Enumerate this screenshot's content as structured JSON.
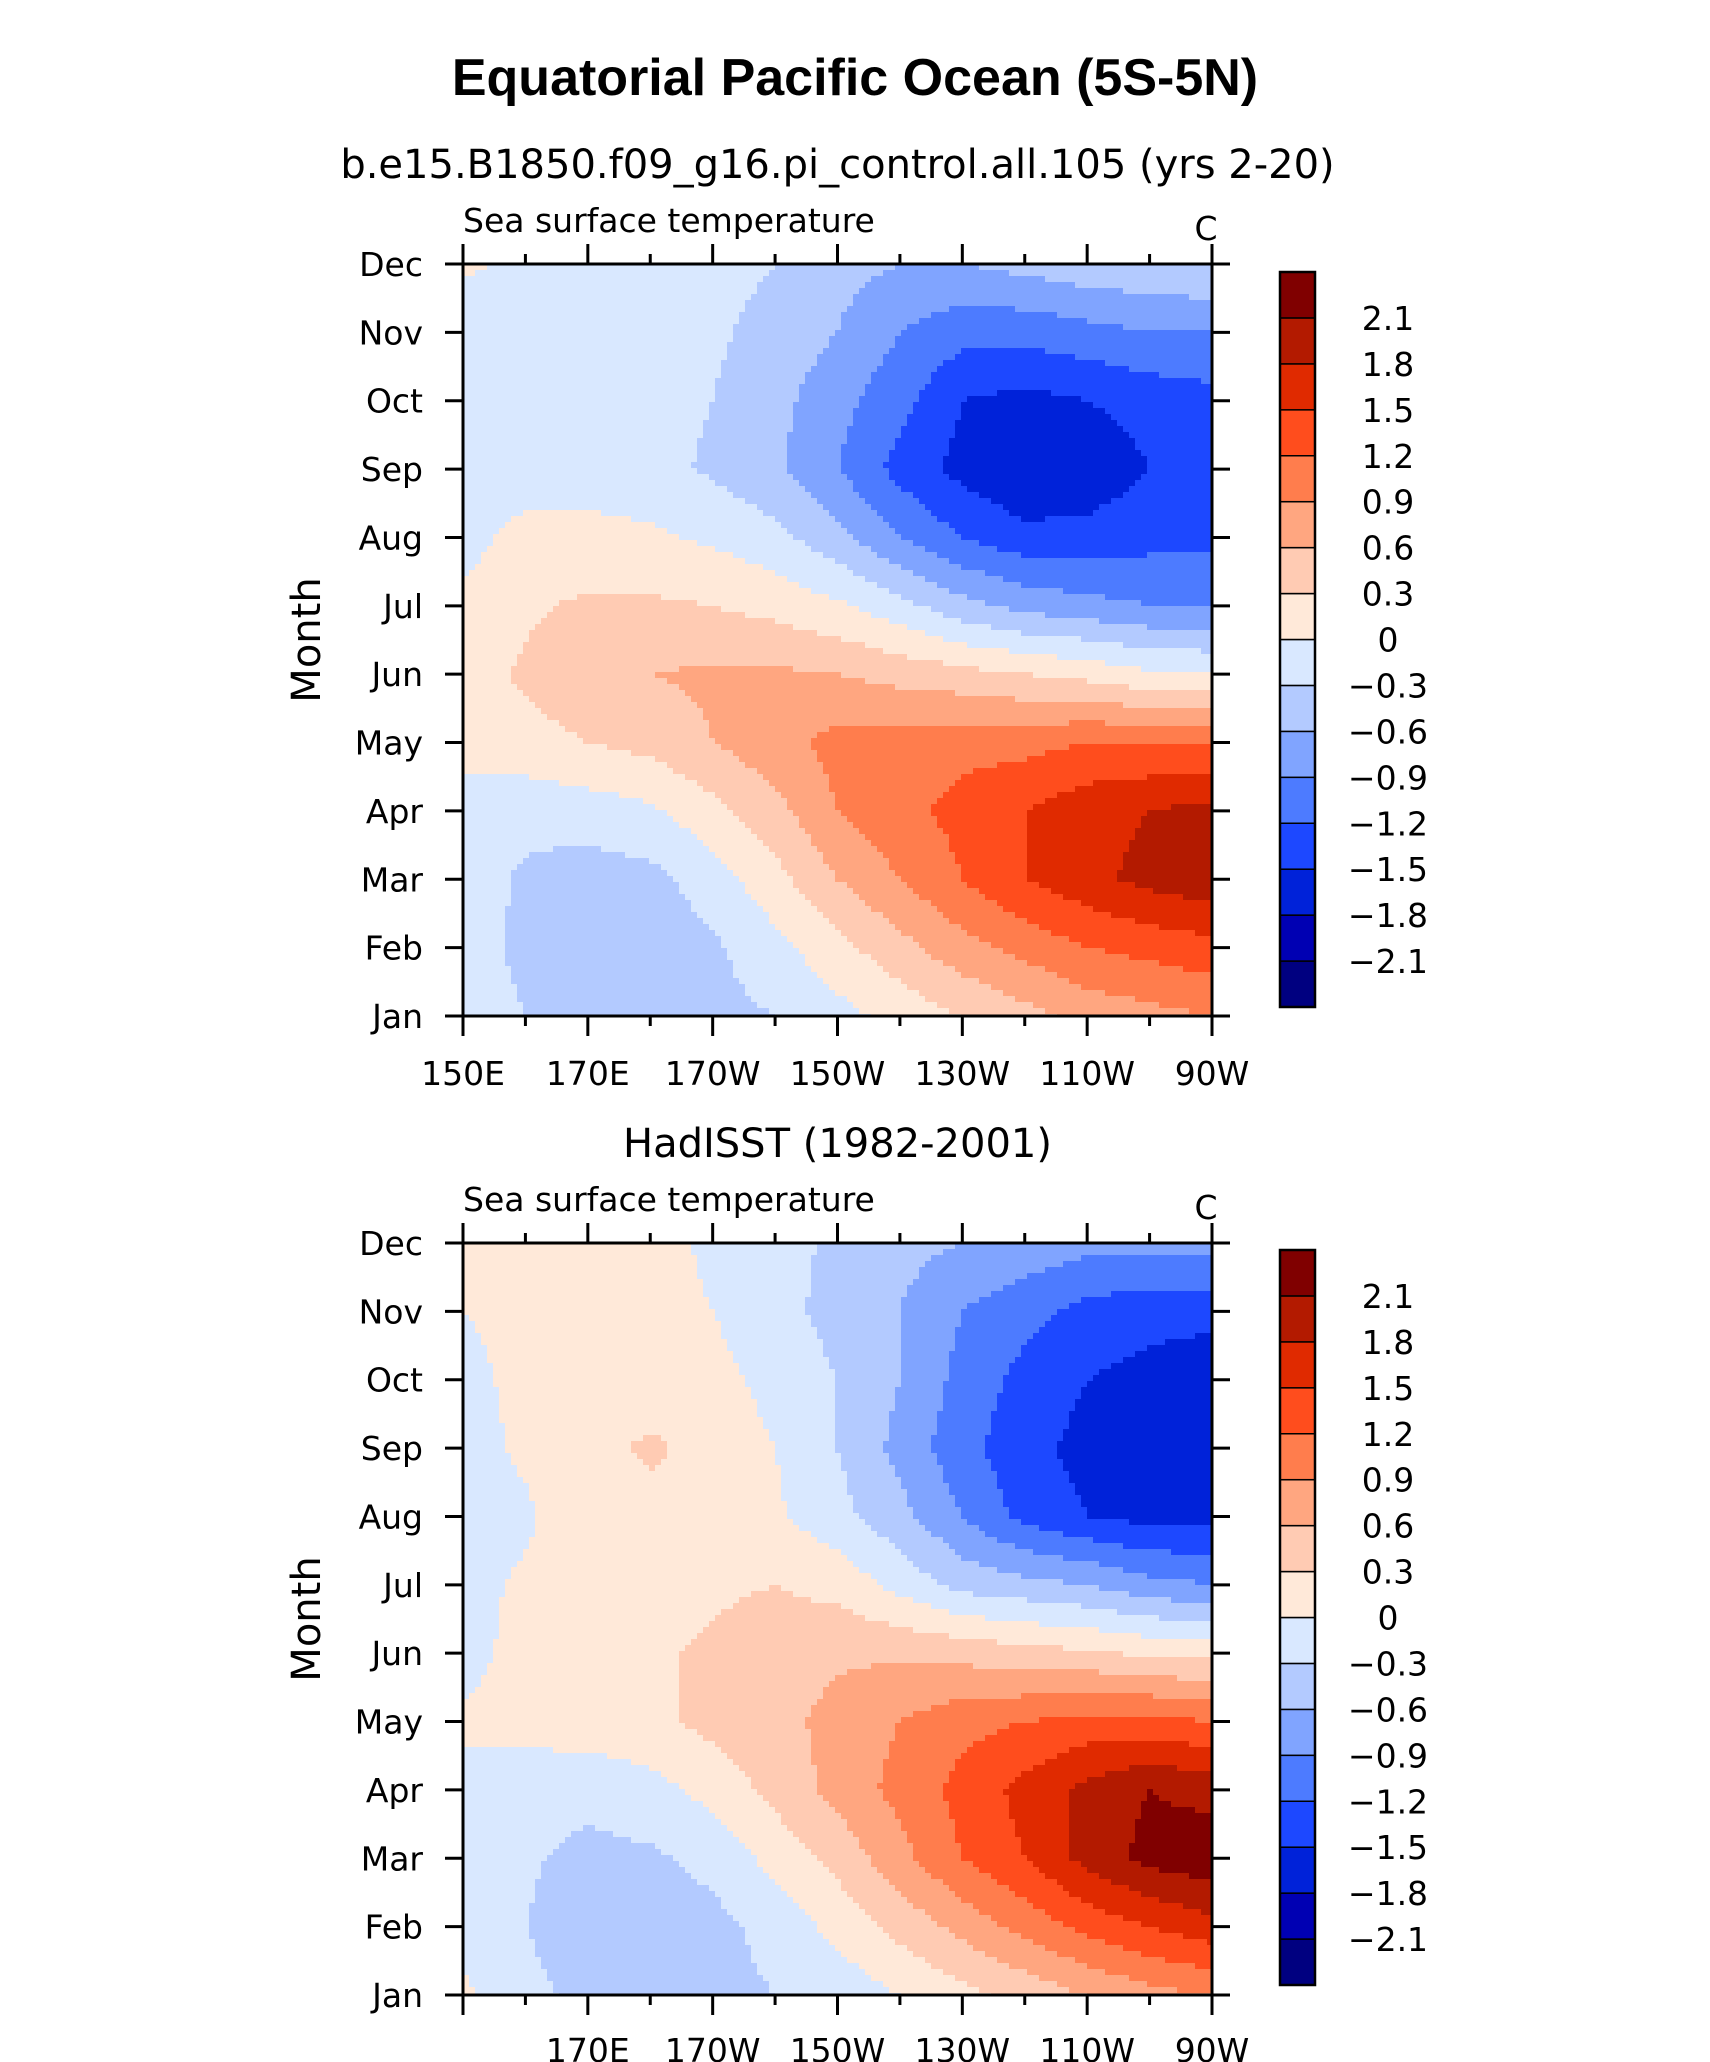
{
  "figure": {
    "title": "Equatorial Pacific Ocean (5S-5N)"
  },
  "colorbar": {
    "colors": [
      "#000080",
      "#0000b3",
      "#0022d9",
      "#1d48ff",
      "#4d7bff",
      "#80a4ff",
      "#b3caff",
      "#d9e8ff",
      "#ffe9d9",
      "#ffcbb3",
      "#ffa680",
      "#ff7d4d",
      "#ff4d1d",
      "#e02a00",
      "#b31a00",
      "#800000"
    ],
    "labels": [
      "-2.1",
      "-1.8",
      "-1.5",
      "-1.2",
      "-0.9",
      "-0.6",
      "-0.3",
      "0",
      "0.3",
      "0.6",
      "0.9",
      "1.2",
      "1.5",
      "1.8",
      "2.1"
    ]
  },
  "chart_data": [
    {
      "type": "heatmap",
      "title": "b.e15.B1850.f09_g16.pi_control.all.105 (yrs 2-20)",
      "left_label": "Sea surface temperature",
      "right_label": "C",
      "ylabel": "Month",
      "xlabel": "",
      "x_ticks": [
        "150E",
        "170E",
        "170W",
        "150W",
        "130W",
        "110W",
        "90W"
      ],
      "y_ticks": [
        "Jan",
        "Feb",
        "Mar",
        "Apr",
        "May",
        "Jun",
        "Jul",
        "Aug",
        "Sep",
        "Oct",
        "Nov",
        "Dec"
      ],
      "xlim": [
        150,
        270
      ],
      "levels": [
        -2.1,
        -1.8,
        -1.5,
        -1.2,
        -0.9,
        -0.6,
        -0.3,
        0,
        0.3,
        0.6,
        0.9,
        1.2,
        1.5,
        1.8,
        2.1
      ],
      "field": {
        "cols_deg": [
          150,
          160,
          170,
          180,
          190,
          200,
          210,
          220,
          230,
          240,
          250,
          260,
          270
        ],
        "rows_month": [
          "Jan",
          "Feb",
          "Mar",
          "Apr",
          "May",
          "Jun",
          "Jul",
          "Aug",
          "Sep",
          "Oct",
          "Nov",
          "Dec"
        ],
        "values": [
          [
            -0.2,
            -0.3,
            -0.4,
            -0.45,
            -0.4,
            -0.3,
            -0.1,
            0.1,
            0.3,
            0.5,
            0.7,
            0.8,
            0.9
          ],
          [
            -0.2,
            -0.35,
            -0.5,
            -0.5,
            -0.35,
            -0.1,
            0.2,
            0.5,
            0.8,
            1.0,
            1.2,
            1.3,
            1.4
          ],
          [
            -0.15,
            -0.35,
            -0.45,
            -0.4,
            -0.15,
            0.2,
            0.6,
            0.9,
            1.2,
            1.5,
            1.7,
            1.9,
            2.0
          ],
          [
            -0.1,
            -0.2,
            -0.15,
            -0.05,
            0.2,
            0.5,
            0.9,
            1.1,
            1.3,
            1.5,
            1.7,
            1.8,
            1.9
          ],
          [
            0.1,
            0.2,
            0.3,
            0.4,
            0.6,
            0.8,
            1.0,
            1.0,
            1.1,
            1.1,
            1.2,
            1.2,
            1.2
          ],
          [
            0.15,
            0.35,
            0.5,
            0.6,
            0.65,
            0.65,
            0.6,
            0.5,
            0.4,
            0.3,
            0.2,
            0.05,
            0.0
          ],
          [
            0.05,
            0.25,
            0.35,
            0.35,
            0.3,
            0.2,
            0.05,
            -0.2,
            -0.5,
            -0.7,
            -0.8,
            -0.9,
            -0.9
          ],
          [
            -0.1,
            0.1,
            0.1,
            0.05,
            -0.05,
            -0.2,
            -0.5,
            -0.9,
            -1.2,
            -1.4,
            -1.4,
            -1.3,
            -1.3
          ],
          [
            -0.2,
            -0.15,
            -0.15,
            -0.2,
            -0.35,
            -0.55,
            -0.9,
            -1.3,
            -1.6,
            -1.8,
            -1.7,
            -1.5,
            -1.4
          ],
          [
            -0.25,
            -0.2,
            -0.2,
            -0.2,
            -0.3,
            -0.5,
            -0.8,
            -1.1,
            -1.5,
            -1.6,
            -1.5,
            -1.4,
            -1.3
          ],
          [
            -0.2,
            -0.2,
            -0.2,
            -0.2,
            -0.25,
            -0.4,
            -0.6,
            -0.9,
            -1.1,
            -1.1,
            -1.0,
            -0.9,
            -0.9
          ],
          [
            0.05,
            -0.05,
            -0.1,
            -0.15,
            -0.2,
            -0.3,
            -0.5,
            -0.6,
            -0.6,
            -0.5,
            -0.4,
            -0.35,
            -0.3
          ]
        ]
      }
    },
    {
      "type": "heatmap",
      "title": "HadISST (1982-2001)",
      "left_label": "Sea surface temperature",
      "right_label": "C",
      "ylabel": "Month",
      "xlabel": "",
      "x_ticks": [
        "170E",
        "170W",
        "150W",
        "130W",
        "110W",
        "90W"
      ],
      "y_ticks": [
        "Jan",
        "Feb",
        "Mar",
        "Apr",
        "May",
        "Jun",
        "Jul",
        "Aug",
        "Sep",
        "Oct",
        "Nov",
        "Dec"
      ],
      "xlim": [
        150,
        270
      ],
      "levels": [
        -2.1,
        -1.8,
        -1.5,
        -1.2,
        -0.9,
        -0.6,
        -0.3,
        0,
        0.3,
        0.6,
        0.9,
        1.2,
        1.5,
        1.8,
        2.1
      ],
      "field": {
        "cols_deg": [
          150,
          160,
          170,
          180,
          190,
          200,
          210,
          220,
          230,
          240,
          250,
          260,
          270
        ],
        "rows_month": [
          "Jan",
          "Feb",
          "Mar",
          "Apr",
          "May",
          "Jun",
          "Jul",
          "Aug",
          "Sep",
          "Oct",
          "Nov",
          "Dec"
        ],
        "values": [
          [
            0.05,
            -0.2,
            -0.4,
            -0.45,
            -0.4,
            -0.3,
            -0.2,
            0.0,
            0.2,
            0.4,
            0.6,
            0.8,
            0.9
          ],
          [
            -0.1,
            -0.3,
            -0.5,
            -0.5,
            -0.4,
            -0.2,
            0.1,
            0.4,
            0.7,
            1.0,
            1.3,
            1.5,
            1.7
          ],
          [
            -0.1,
            -0.25,
            -0.4,
            -0.35,
            -0.2,
            0.1,
            0.4,
            0.8,
            1.2,
            1.5,
            1.9,
            2.2,
            2.3
          ],
          [
            -0.1,
            -0.15,
            -0.2,
            -0.1,
            0.1,
            0.4,
            0.7,
            1.0,
            1.3,
            1.6,
            1.9,
            2.1,
            2.0
          ],
          [
            0.05,
            0.1,
            0.15,
            0.2,
            0.4,
            0.5,
            0.7,
            0.9,
            1.1,
            1.2,
            1.3,
            1.3,
            1.2
          ],
          [
            -0.1,
            0.1,
            0.2,
            0.25,
            0.35,
            0.45,
            0.55,
            0.55,
            0.5,
            0.4,
            0.35,
            0.25,
            0.2
          ],
          [
            -0.1,
            0.05,
            0.15,
            0.2,
            0.25,
            0.3,
            0.2,
            -0.1,
            -0.4,
            -0.5,
            -0.6,
            -0.8,
            -0.9
          ],
          [
            -0.15,
            -0.05,
            0.2,
            0.2,
            0.15,
            0.05,
            -0.2,
            -0.5,
            -0.9,
            -1.3,
            -1.5,
            -1.6,
            -1.6
          ],
          [
            -0.1,
            0.05,
            0.2,
            0.35,
            0.2,
            0.0,
            -0.3,
            -0.7,
            -1.1,
            -1.4,
            -1.6,
            -1.7,
            -1.7
          ],
          [
            -0.05,
            0.05,
            0.15,
            0.15,
            0.1,
            -0.1,
            -0.3,
            -0.6,
            -1.0,
            -1.3,
            -1.5,
            -1.6,
            -1.7
          ],
          [
            0.0,
            0.05,
            0.1,
            0.1,
            0.0,
            -0.2,
            -0.4,
            -0.6,
            -0.9,
            -1.1,
            -1.3,
            -1.4,
            -1.4
          ],
          [
            0.05,
            0.1,
            0.1,
            0.1,
            -0.05,
            -0.2,
            -0.35,
            -0.5,
            -0.6,
            -0.7,
            -0.8,
            -0.8,
            -0.8
          ]
        ]
      }
    }
  ]
}
